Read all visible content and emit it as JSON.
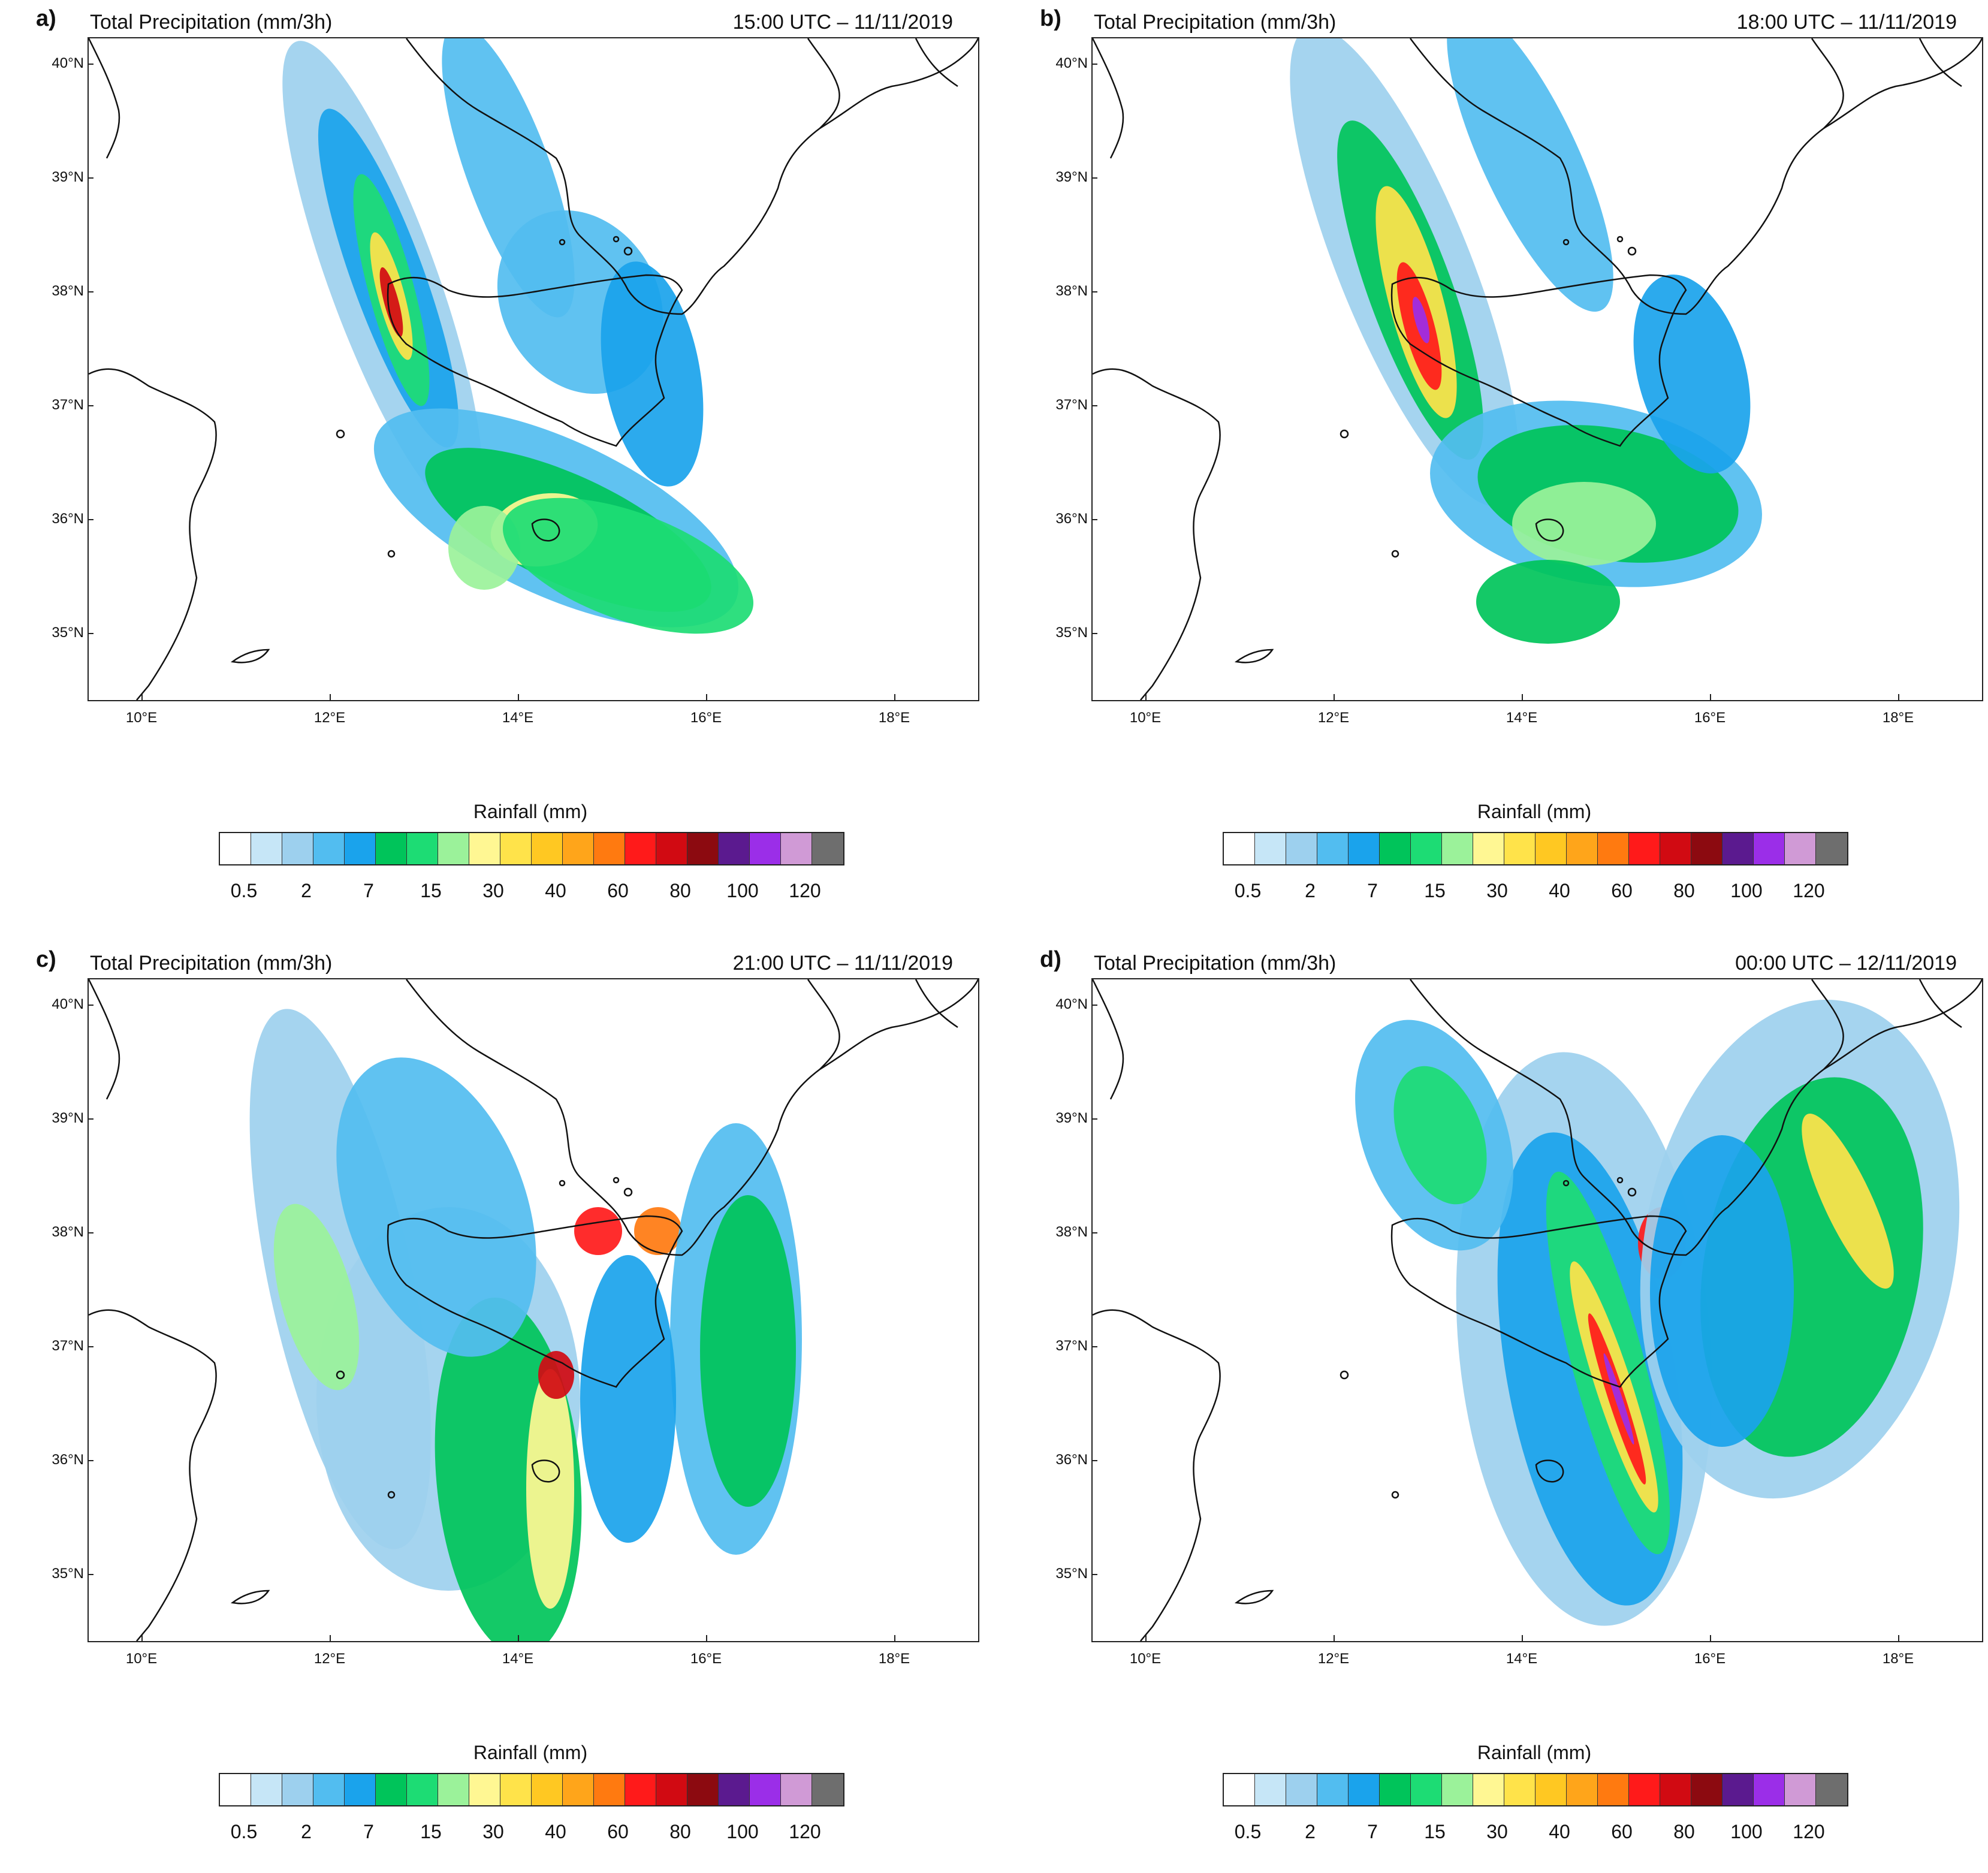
{
  "panels": [
    {
      "letter": "a)",
      "title": "Total Precipitation (mm/3h)",
      "time": "15:00 UTC – 11/11/2019"
    },
    {
      "letter": "b)",
      "title": "Total Precipitation (mm/3h)",
      "time": "18:00 UTC – 11/11/2019"
    },
    {
      "letter": "c)",
      "title": "Total Precipitation (mm/3h)",
      "time": "21:00 UTC – 11/11/2019"
    },
    {
      "letter": "d)",
      "title": "Total Precipitation (mm/3h)",
      "time": "00:00 UTC – 12/11/2019"
    }
  ],
  "lat_labels": [
    "40°N",
    "39°N",
    "38°N",
    "37°N",
    "36°N",
    "35°N"
  ],
  "lon_labels": [
    "10°E",
    "12°E",
    "14°E",
    "16°E",
    "18°E"
  ],
  "colorbar": {
    "title": "Rainfall  (mm)",
    "labels": [
      "0.5",
      "2",
      "7",
      "15",
      "30",
      "40",
      "60",
      "80",
      "100",
      "120"
    ],
    "colors": [
      "#ffffff",
      "#c6e6f7",
      "#9dd0ee",
      "#52bdf0",
      "#1aa3ec",
      "#00c45a",
      "#1ddc74",
      "#9bf29a",
      "#fff793",
      "#ffe34a",
      "#ffc822",
      "#ffa51a",
      "#ff7a10",
      "#ff1a1a",
      "#d10a12",
      "#8c0a10",
      "#5b1a8f",
      "#9b2ee8",
      "#d09ad6",
      "#6e6e6e"
    ]
  }
}
